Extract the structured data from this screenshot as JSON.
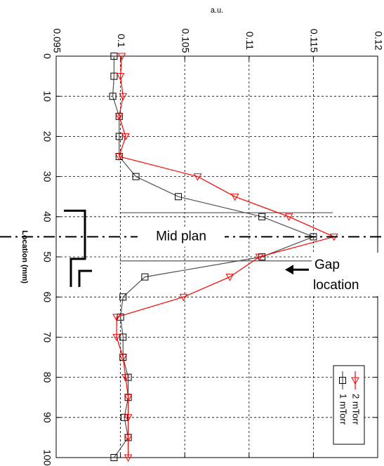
{
  "chart_data": {
    "type": "line",
    "orientation": "rotated 90 degrees clockwise (x axis runs top to bottom, y axis left to right)",
    "xlabel": "Location (mm)",
    "ylabel": "a.u.",
    "xlim": [
      0,
      100
    ],
    "ylim": [
      0.095,
      0.12
    ],
    "x_ticks": [
      "0",
      "10",
      "20",
      "30",
      "40",
      "50",
      "60",
      "70",
      "80",
      "90",
      "100"
    ],
    "y_ticks": [
      "0.095",
      "0.1",
      "0.105",
      "0.11",
      "0.115",
      "0.12"
    ],
    "grid": true,
    "legend_position": "bottom-right",
    "series": [
      {
        "name": "1 mTorr",
        "color": "#505050",
        "marker": "square",
        "x": [
          0,
          5,
          10,
          15,
          20,
          25,
          30,
          35,
          40,
          45,
          50,
          55,
          60,
          65,
          70,
          75,
          80,
          85,
          90,
          95,
          100
        ],
        "values": [
          0.0995,
          0.0995,
          0.0994,
          0.0999,
          0.0999,
          0.0999,
          0.1012,
          0.1045,
          0.111,
          0.115,
          0.111,
          0.1019,
          0.1002,
          0.1,
          0.1002,
          0.1002,
          0.1006,
          0.1006,
          0.1003,
          0.1006,
          0.0995
        ]
      },
      {
        "name": "2 mTorr",
        "color": "#ff0000",
        "marker": "triangle-down",
        "x": [
          0,
          5,
          10,
          15,
          20,
          25,
          30,
          35,
          40,
          45,
          50,
          55,
          60,
          65,
          70,
          75,
          80,
          85,
          90,
          95,
          100
        ],
        "values": [
          0.1001,
          0.1,
          0.1002,
          0.0999,
          0.1004,
          0.0999,
          0.106,
          0.1089,
          0.1131,
          0.1166,
          0.1108,
          0.1085,
          0.1049,
          0.0997,
          0.0997,
          0.1002,
          0.1004,
          0.1006,
          0.1006,
          0.1006,
          0.1006
        ]
      }
    ],
    "annotations": {
      "mid_plan": "Mid plan",
      "gap_line1": "Gap",
      "gap_line2": "location"
    }
  }
}
